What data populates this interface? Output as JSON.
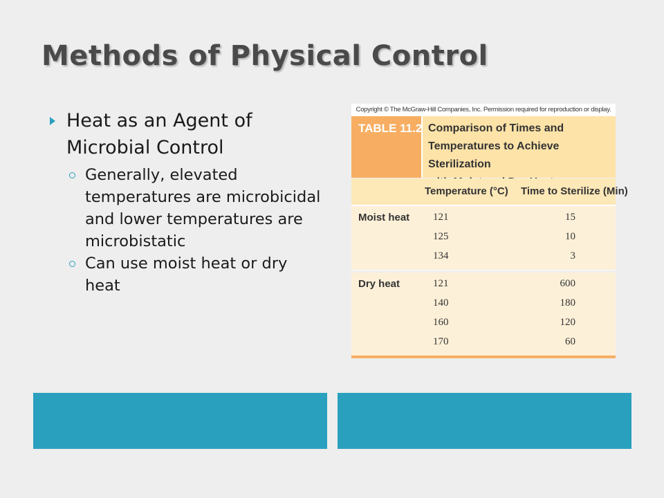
{
  "slide": {
    "title": "Methods of Physical Control"
  },
  "bullets": {
    "main": "Heat as an Agent of Microbial Control",
    "sub": [
      "Generally, elevated temperatures are microbicidal and lower temperatures are microbistatic",
      "Can use moist heat or dry heat"
    ]
  },
  "figure": {
    "copyright": "Copyright © The McGraw-Hill Companies, Inc. Permission required for reproduction or display.",
    "tag": "TABLE 11.2",
    "caption_lines": [
      "Comparison of Times and",
      "Temperatures to Achieve Sterilization",
      "with Moist and Dry Heat"
    ],
    "columns": {
      "temperature": "Temperature (°C)",
      "time": "Time to Sterilize (Min)"
    },
    "groups": [
      {
        "label": "Moist heat",
        "rows": [
          {
            "temp": "121",
            "time": "15"
          },
          {
            "temp": "125",
            "time": "10"
          },
          {
            "temp": "134",
            "time": "3"
          }
        ]
      },
      {
        "label": "Dry heat",
        "rows": [
          {
            "temp": "121",
            "time": "600"
          },
          {
            "temp": "140",
            "time": "180"
          },
          {
            "temp": "160",
            "time": "120"
          },
          {
            "temp": "170",
            "time": "60"
          }
        ]
      }
    ]
  },
  "colors": {
    "accent": "#2aa0bf",
    "table_orange": "#f7ae62",
    "table_cream": "#fdf0d8"
  }
}
